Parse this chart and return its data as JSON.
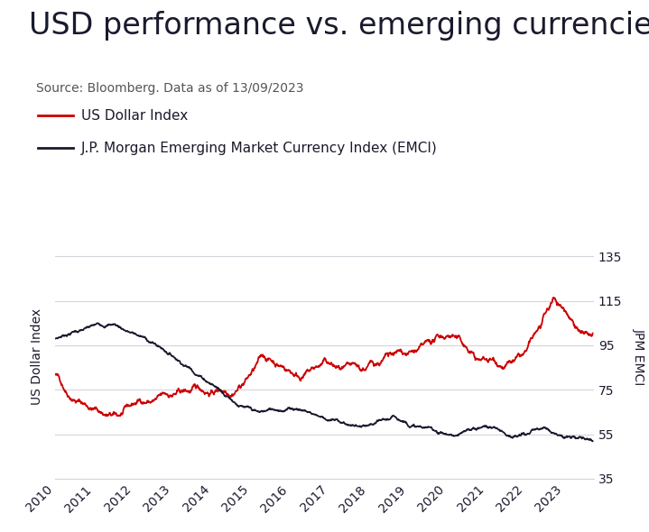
{
  "title": "USD performance vs. emerging currencies",
  "source": "Source: Bloomberg. Data as of 13/09/2023",
  "legend_items": [
    {
      "label": "US Dollar Index",
      "color": "#cc0000"
    },
    {
      "label": "J.P. Morgan Emerging Market Currency Index (EMCI)",
      "color": "#1a1a2e"
    }
  ],
  "ylabel_left": "US Dollar Index",
  "ylabel_right": "JPM EMCI",
  "ylim": [
    35,
    145
  ],
  "yticks": [
    35,
    55,
    75,
    95,
    115,
    135
  ],
  "xtick_years": [
    2010,
    2011,
    2012,
    2013,
    2014,
    2015,
    2016,
    2017,
    2018,
    2019,
    2020,
    2021,
    2022,
    2023
  ],
  "title_fontsize": 24,
  "source_fontsize": 10,
  "legend_fontsize": 11,
  "axis_label_fontsize": 10,
  "tick_fontsize": 10,
  "background_color": "#ffffff",
  "grid_color": "#d4d4dc",
  "title_color": "#1a1a2e",
  "source_color": "#555555",
  "text_color": "#1a1a2e",
  "usd_color": "#cc0000",
  "emci_color": "#1a1a2e",
  "usd_linewidth": 1.3,
  "emci_linewidth": 1.3
}
